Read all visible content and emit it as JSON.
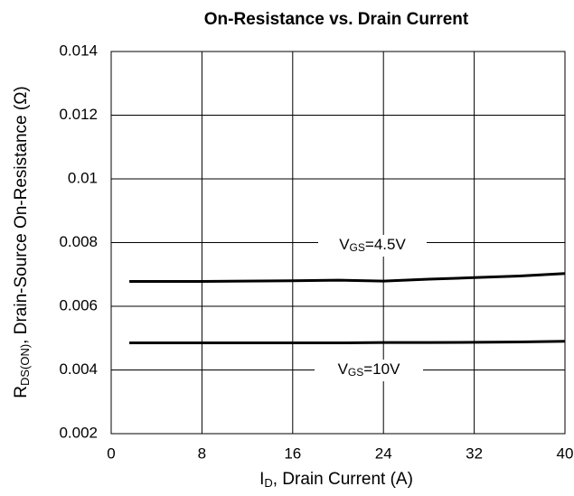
{
  "chart_data": {
    "type": "line",
    "title": "On-Resistance vs. Drain Current",
    "x_label": [
      "I",
      "D",
      ", Drain Current (A)"
    ],
    "y_label": [
      "R",
      "DS(ON)",
      ", Drain-Source On-Resistance (Ω)"
    ],
    "x": [
      1.6,
      8,
      16,
      20,
      24,
      28,
      32,
      36,
      40
    ],
    "series": [
      {
        "label": [
          "V",
          "GS",
          "=4.5V"
        ],
        "color": "#000000",
        "values": [
          0.00678,
          0.00678,
          0.0068,
          0.00682,
          0.00679,
          0.00685,
          0.0069,
          0.00695,
          0.00703
        ]
      },
      {
        "label": [
          "V",
          "GS",
          "=10V"
        ],
        "color": "#000000",
        "values": [
          0.00485,
          0.00485,
          0.00485,
          0.00485,
          0.00486,
          0.00486,
          0.00487,
          0.00488,
          0.0049
        ]
      }
    ],
    "xlim": [
      0,
      40
    ],
    "xticks": [
      0,
      8,
      16,
      24,
      32,
      40
    ],
    "ylim": [
      0.002,
      0.014
    ],
    "yticks": [
      0.002,
      0.004,
      0.006,
      0.008,
      0.01,
      0.012,
      0.014
    ],
    "grid": true
  }
}
